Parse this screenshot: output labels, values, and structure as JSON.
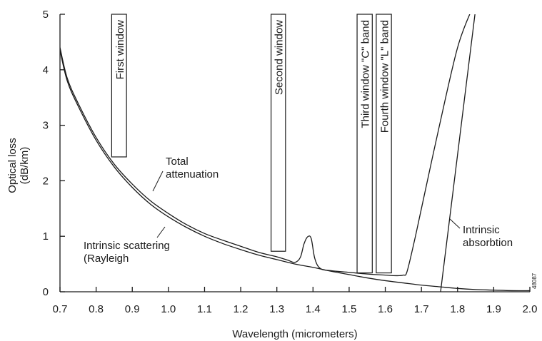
{
  "chart_data": {
    "type": "line",
    "xlabel": "Wavelength (micrometers)",
    "ylabel_lines": [
      "Optical loss",
      "(dB/km)"
    ],
    "xlim": [
      0.7,
      2.0
    ],
    "ylim": [
      0,
      5
    ],
    "x_ticks": [
      0.7,
      0.8,
      0.9,
      1.0,
      1.1,
      1.2,
      1.3,
      1.4,
      1.5,
      1.6,
      1.7,
      1.8,
      1.9,
      2.0
    ],
    "x_tick_labels": [
      "0.7",
      "0.8",
      "0.9",
      "1.0",
      "1.1",
      "1.2",
      "1.3",
      "1.4",
      "1.5",
      "1.6",
      "1.7",
      "1.8",
      "1.9",
      "2.0"
    ],
    "y_ticks": [
      0,
      1,
      2,
      3,
      4,
      5
    ],
    "y_tick_labels": [
      "0",
      "1",
      "2",
      "3",
      "4",
      "5"
    ],
    "grid": false,
    "legend": "none",
    "series": [
      {
        "key": "total",
        "x": [
          0.7,
          0.72,
          0.75,
          0.8,
          0.85,
          0.9,
          0.95,
          1.0,
          1.05,
          1.1,
          1.15,
          1.2,
          1.25,
          1.3,
          1.33,
          1.35,
          1.365,
          1.375,
          1.385,
          1.395,
          1.405,
          1.42,
          1.45,
          1.5,
          1.55,
          1.6,
          1.63,
          1.65,
          1.66,
          1.68,
          1.7,
          1.75,
          1.8,
          1.84
        ],
        "y": [
          4.4,
          3.85,
          3.4,
          2.78,
          2.3,
          1.94,
          1.64,
          1.41,
          1.21,
          1.05,
          0.93,
          0.82,
          0.71,
          0.63,
          0.57,
          0.53,
          0.62,
          0.86,
          0.99,
          0.96,
          0.6,
          0.42,
          0.38,
          0.35,
          0.32,
          0.3,
          0.29,
          0.3,
          0.36,
          0.9,
          1.5,
          3.0,
          4.4,
          5.1
        ]
      },
      {
        "key": "rayleigh",
        "x": [
          0.7,
          0.72,
          0.75,
          0.8,
          0.85,
          0.9,
          0.95,
          1.0,
          1.05,
          1.1,
          1.15,
          1.2,
          1.25,
          1.3,
          1.35,
          1.4,
          1.45,
          1.5,
          1.55,
          1.6,
          1.65,
          1.7,
          1.75,
          1.8,
          1.85,
          1.9,
          1.95,
          2.0
        ],
        "y": [
          4.35,
          3.8,
          3.35,
          2.73,
          2.25,
          1.88,
          1.58,
          1.35,
          1.16,
          1.0,
          0.87,
          0.76,
          0.66,
          0.58,
          0.5,
          0.44,
          0.37,
          0.31,
          0.25,
          0.2,
          0.16,
          0.12,
          0.09,
          0.06,
          0.04,
          0.03,
          0.02,
          0.02
        ]
      },
      {
        "key": "absorption",
        "x": [
          1.753,
          1.85
        ],
        "y": [
          0.0,
          5.1
        ]
      }
    ],
    "windows": [
      {
        "label": "First window",
        "x0": 0.843,
        "x1": 0.884,
        "y0": 2.43,
        "y1": 5.0
      },
      {
        "label": "Second window",
        "x0": 1.284,
        "x1": 1.324,
        "y0": 0.73,
        "y1": 5.0
      },
      {
        "label": "Third window \"C\" band",
        "x0": 1.522,
        "x1": 1.564,
        "y0": 0.34,
        "y1": 5.0
      },
      {
        "label": "Fourth window \"L\" band",
        "x0": 1.575,
        "x1": 1.617,
        "y0": 0.34,
        "y1": 5.0
      }
    ],
    "annotations": [
      {
        "key": "total",
        "lines": [
          "Total",
          "attenuation"
        ]
      },
      {
        "key": "rayleigh",
        "lines": [
          "Intrinsic scattering",
          "(Rayleigh"
        ]
      },
      {
        "key": "absorption",
        "lines": [
          "Intrinsic",
          "absorbtion"
        ]
      }
    ],
    "figure_id": "48087",
    "line_color": "#1a1a1a"
  }
}
